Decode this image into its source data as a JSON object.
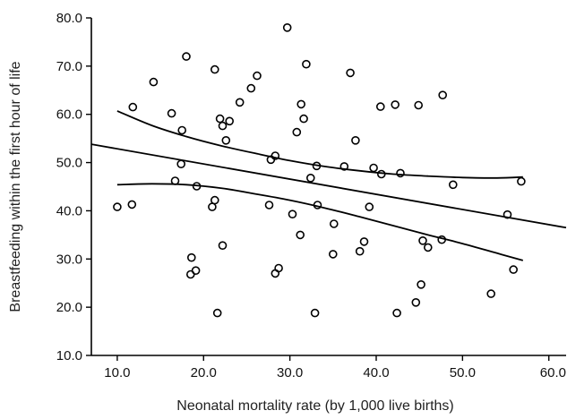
{
  "chart_data": {
    "type": "scatter",
    "xlabel": "Neonatal mortality rate (by 1,000 live births)",
    "ylabel": "Breastfeeding within the first hour of life",
    "xlim": [
      7.0,
      62.0
    ],
    "ylim": [
      10.0,
      80.0
    ],
    "x_ticks": [
      10.0,
      20.0,
      30.0,
      40.0,
      50.0,
      60.0
    ],
    "y_ticks": [
      10.0,
      20.0,
      30.0,
      40.0,
      50.0,
      60.0,
      70.0,
      80.0
    ],
    "x_tick_labels": [
      "10.0",
      "20.0",
      "30.0",
      "40.0",
      "50.0",
      "60.0"
    ],
    "y_tick_labels": [
      "10.0",
      "20.0",
      "30.0",
      "40.0",
      "50.0",
      "60.0",
      "70.0",
      "80.0"
    ],
    "grid": false,
    "points": [
      {
        "x": 10.0,
        "y": 40.8
      },
      {
        "x": 11.7,
        "y": 41.3
      },
      {
        "x": 11.8,
        "y": 61.5
      },
      {
        "x": 14.2,
        "y": 66.7
      },
      {
        "x": 16.3,
        "y": 60.2
      },
      {
        "x": 16.7,
        "y": 46.2
      },
      {
        "x": 17.4,
        "y": 49.7
      },
      {
        "x": 17.5,
        "y": 56.7
      },
      {
        "x": 18.0,
        "y": 72.0
      },
      {
        "x": 18.5,
        "y": 26.8
      },
      {
        "x": 18.6,
        "y": 30.3
      },
      {
        "x": 19.1,
        "y": 27.6
      },
      {
        "x": 19.2,
        "y": 45.1
      },
      {
        "x": 21.0,
        "y": 40.8
      },
      {
        "x": 21.3,
        "y": 42.2
      },
      {
        "x": 21.3,
        "y": 69.3
      },
      {
        "x": 21.6,
        "y": 18.8
      },
      {
        "x": 21.9,
        "y": 59.1
      },
      {
        "x": 22.2,
        "y": 57.6
      },
      {
        "x": 22.2,
        "y": 32.8
      },
      {
        "x": 22.6,
        "y": 54.6
      },
      {
        "x": 23.0,
        "y": 58.6
      },
      {
        "x": 24.2,
        "y": 62.5
      },
      {
        "x": 25.5,
        "y": 65.4
      },
      {
        "x": 26.2,
        "y": 68.0
      },
      {
        "x": 27.6,
        "y": 41.2
      },
      {
        "x": 27.8,
        "y": 50.6
      },
      {
        "x": 28.3,
        "y": 51.4
      },
      {
        "x": 28.3,
        "y": 27.0
      },
      {
        "x": 28.7,
        "y": 28.1
      },
      {
        "x": 29.7,
        "y": 78.0
      },
      {
        "x": 30.3,
        "y": 39.3
      },
      {
        "x": 30.8,
        "y": 56.3
      },
      {
        "x": 31.2,
        "y": 35.0
      },
      {
        "x": 31.3,
        "y": 62.1
      },
      {
        "x": 31.6,
        "y": 59.1
      },
      {
        "x": 31.9,
        "y": 70.4
      },
      {
        "x": 32.4,
        "y": 46.8
      },
      {
        "x": 32.9,
        "y": 18.8
      },
      {
        "x": 33.1,
        "y": 49.3
      },
      {
        "x": 33.2,
        "y": 41.2
      },
      {
        "x": 35.0,
        "y": 31.0
      },
      {
        "x": 35.1,
        "y": 37.3
      },
      {
        "x": 36.3,
        "y": 49.2
      },
      {
        "x": 37.0,
        "y": 68.6
      },
      {
        "x": 37.6,
        "y": 54.6
      },
      {
        "x": 38.1,
        "y": 31.6
      },
      {
        "x": 38.6,
        "y": 33.6
      },
      {
        "x": 39.2,
        "y": 40.8
      },
      {
        "x": 39.7,
        "y": 48.9
      },
      {
        "x": 40.5,
        "y": 61.6
      },
      {
        "x": 40.6,
        "y": 47.6
      },
      {
        "x": 42.2,
        "y": 62.0
      },
      {
        "x": 42.4,
        "y": 18.8
      },
      {
        "x": 42.8,
        "y": 47.8
      },
      {
        "x": 44.6,
        "y": 21.0
      },
      {
        "x": 44.9,
        "y": 61.9
      },
      {
        "x": 45.2,
        "y": 24.7
      },
      {
        "x": 45.4,
        "y": 33.8
      },
      {
        "x": 46.0,
        "y": 32.4
      },
      {
        "x": 47.6,
        "y": 34.0
      },
      {
        "x": 47.7,
        "y": 64.0
      },
      {
        "x": 48.9,
        "y": 45.4
      },
      {
        "x": 53.3,
        "y": 22.8
      },
      {
        "x": 55.2,
        "y": 39.2
      },
      {
        "x": 55.9,
        "y": 27.8
      },
      {
        "x": 56.8,
        "y": 46.1
      }
    ],
    "regression_line": {
      "x": [
        7.0,
        62.0
      ],
      "y": [
        53.8,
        36.5
      ]
    },
    "confidence_band": {
      "upper": {
        "x": [
          10.0,
          14.0,
          18.0,
          22.0,
          26.0,
          30.0,
          34.0,
          38.0,
          42.0,
          46.0,
          50.0,
          54.0,
          57.0
        ],
        "y": [
          60.7,
          57.7,
          55.4,
          53.5,
          51.9,
          50.4,
          49.2,
          48.3,
          47.6,
          47.2,
          46.9,
          46.8,
          47.0
        ]
      },
      "lower": {
        "x": [
          10.0,
          14.0,
          18.0,
          22.0,
          26.0,
          30.0,
          34.0,
          38.0,
          42.0,
          46.0,
          50.0,
          54.0,
          57.0
        ],
        "y": [
          45.4,
          45.6,
          45.4,
          44.7,
          43.5,
          42.2,
          40.6,
          38.8,
          36.9,
          35.0,
          33.2,
          31.2,
          29.7
        ]
      }
    }
  }
}
